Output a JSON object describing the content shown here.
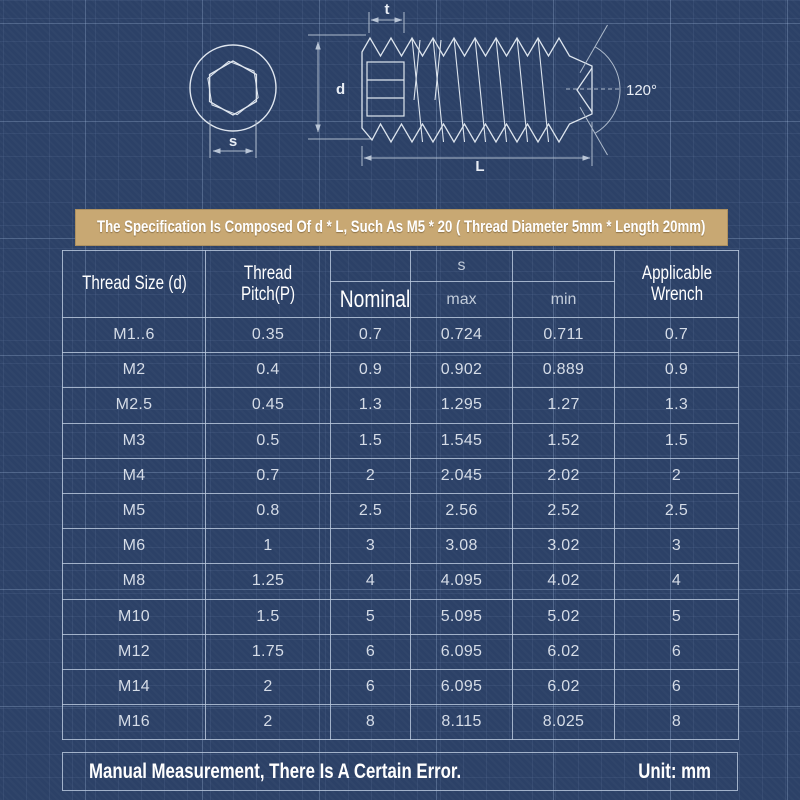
{
  "colors": {
    "background": "#2c4167",
    "grid_line": "#7e96ba",
    "banner_bg": "#c8a873",
    "table_border": "#b6c5da",
    "body_text": "#d5dce7",
    "header_text": "#ffffff",
    "drawing_line": "#dde5ee",
    "dimension_line": "#aebbcc"
  },
  "diagram": {
    "labels": {
      "socket_width": "s",
      "socket_depth": "t",
      "diameter": "d",
      "length": "L",
      "cup_angle": "120°"
    }
  },
  "spec_banner": {
    "text": "The Specification Is Composed Of d * L, Such As M5 * 20 ( Thread Diameter 5mm * Length 20mm)"
  },
  "table": {
    "headers": {
      "thread_size": "Thread Size (d)",
      "thread_pitch": "Thread Pitch(P)",
      "nominal": "Nominal",
      "s_group": "s",
      "max": "max",
      "min": "min",
      "wrench": "Applicable Wrench"
    },
    "rows": [
      [
        "M1..6",
        "0.35",
        "0.7",
        "0.724",
        "0.711",
        "0.7"
      ],
      [
        "M2",
        "0.4",
        "0.9",
        "0.902",
        "0.889",
        "0.9"
      ],
      [
        "M2.5",
        "0.45",
        "1.3",
        "1.295",
        "1.27",
        "1.3"
      ],
      [
        "M3",
        "0.5",
        "1.5",
        "1.545",
        "1.52",
        "1.5"
      ],
      [
        "M4",
        "0.7",
        "2",
        "2.045",
        "2.02",
        "2"
      ],
      [
        "M5",
        "0.8",
        "2.5",
        "2.56",
        "2.52",
        "2.5"
      ],
      [
        "M6",
        "1",
        "3",
        "3.08",
        "3.02",
        "3"
      ],
      [
        "M8",
        "1.25",
        "4",
        "4.095",
        "4.02",
        "4"
      ],
      [
        "M10",
        "1.5",
        "5",
        "5.095",
        "5.02",
        "5"
      ],
      [
        "M12",
        "1.75",
        "6",
        "6.095",
        "6.02",
        "6"
      ],
      [
        "M14",
        "2",
        "6",
        "6.095",
        "6.02",
        "6"
      ],
      [
        "M16",
        "2",
        "8",
        "8.115",
        "8.025",
        "8"
      ]
    ]
  },
  "footer": {
    "note": "Manual Measurement, There Is A Certain Error.",
    "unit": "Unit: mm"
  }
}
